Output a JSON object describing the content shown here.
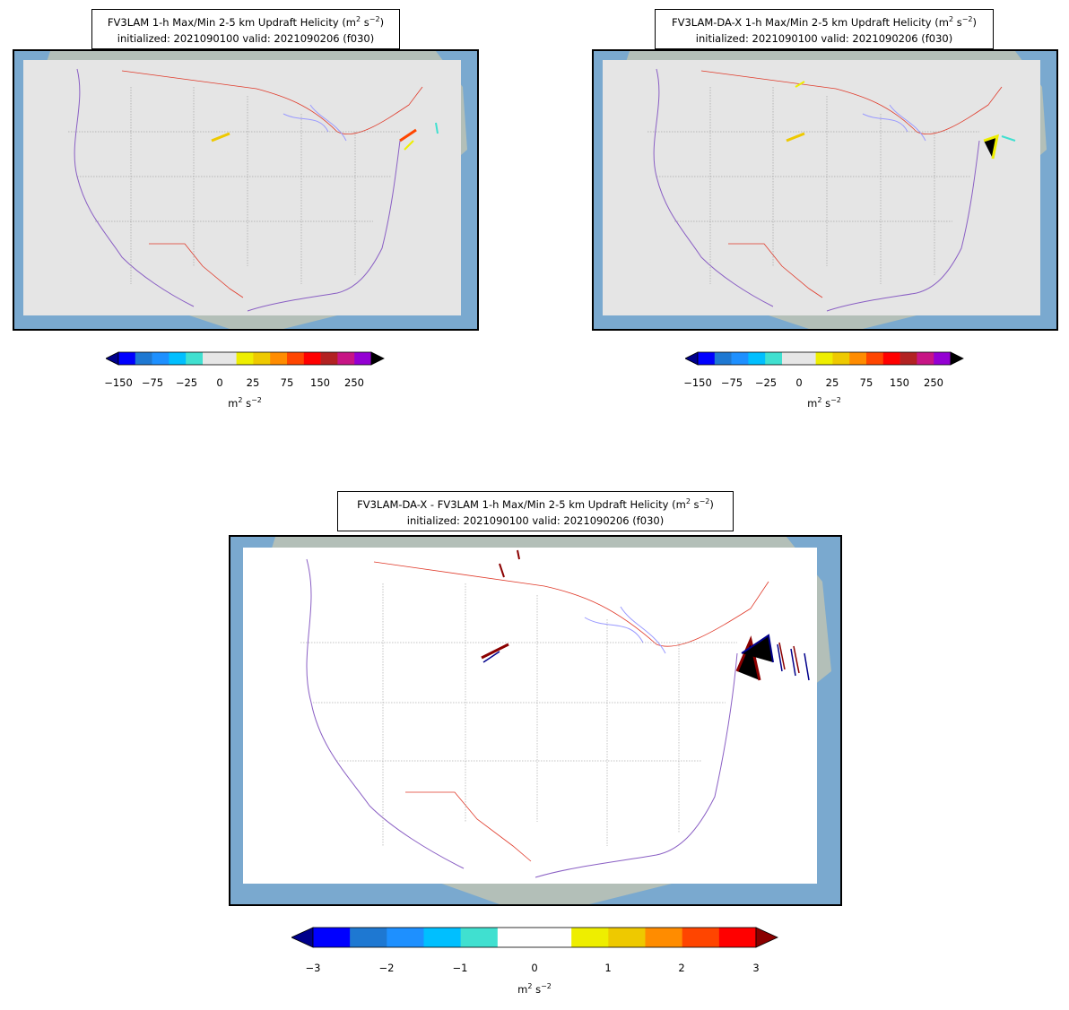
{
  "panels": [
    {
      "title_line1_prefix": "FV3LAM 1-h Max/Min 2-5 km Updraft Helicity (m",
      "title_line1_suffix": " s",
      "title_sup1": "2",
      "title_sup2": "−2",
      "title_close": ")",
      "title_line2": "initialized: 2021090100 valid: 2021090206 (f030)"
    },
    {
      "title_line1_prefix": "FV3LAM-DA-X 1-h Max/Min 2-5 km Updraft Helicity (m",
      "title_line1_suffix": " s",
      "title_sup1": "2",
      "title_sup2": "−2",
      "title_close": ")",
      "title_line2": "initialized: 2021090100 valid: 2021090206 (f030)"
    },
    {
      "title_line1_prefix": "FV3LAM-DA-X - FV3LAM 1-h Max/Min 2-5 km Updraft Helicity (m",
      "title_line1_suffix": " s",
      "title_sup1": "2",
      "title_sup2": "−2",
      "title_close": ")",
      "title_line2": "initialized: 2021090100 valid: 2021090206 (f030)"
    }
  ],
  "colorbar_small": {
    "colors": [
      "#0000ff",
      "#1e78d2",
      "#1e90ff",
      "#00bfff",
      "#40e0d0",
      "#e6e6e6",
      "#e6e6e6",
      "#eeee00",
      "#eec900",
      "#ff8c00",
      "#ff4500",
      "#ff0000",
      "#b22222",
      "#c71585",
      "#9400d3"
    ],
    "under_color": "#00008b",
    "over_color": "#000000",
    "ticks": [
      "−150",
      "−75",
      "−25",
      "0",
      "25",
      "75",
      "150",
      "250"
    ],
    "units_base": "m",
    "units_sup1": "2",
    "units_mid": " s",
    "units_sup2": "−2"
  },
  "colorbar_large": {
    "colors": [
      "#0000ff",
      "#1e78d2",
      "#1e90ff",
      "#00bfff",
      "#40e0d0",
      "#ffffff",
      "#ffffff",
      "#eeee00",
      "#eec900",
      "#ff8c00",
      "#ff4500",
      "#ff0000"
    ],
    "under_color": "#00008b",
    "over_color": "#8b0000",
    "ticks": [
      "−3",
      "−2",
      "−1",
      "0",
      "1",
      "2",
      "3"
    ],
    "units_base": "m",
    "units_sup1": "2",
    "units_mid": " s",
    "units_sup2": "−2"
  },
  "colors": {
    "ocean": "#7aa9cf",
    "land": "#d8cfa8",
    "field_small": "#e5e5e5",
    "field_diff": "#ffffff",
    "coast": "#8a5fc4",
    "border_intl": "#e03a2a",
    "lakes": "#9a9aff",
    "state_lines": "#777777"
  }
}
